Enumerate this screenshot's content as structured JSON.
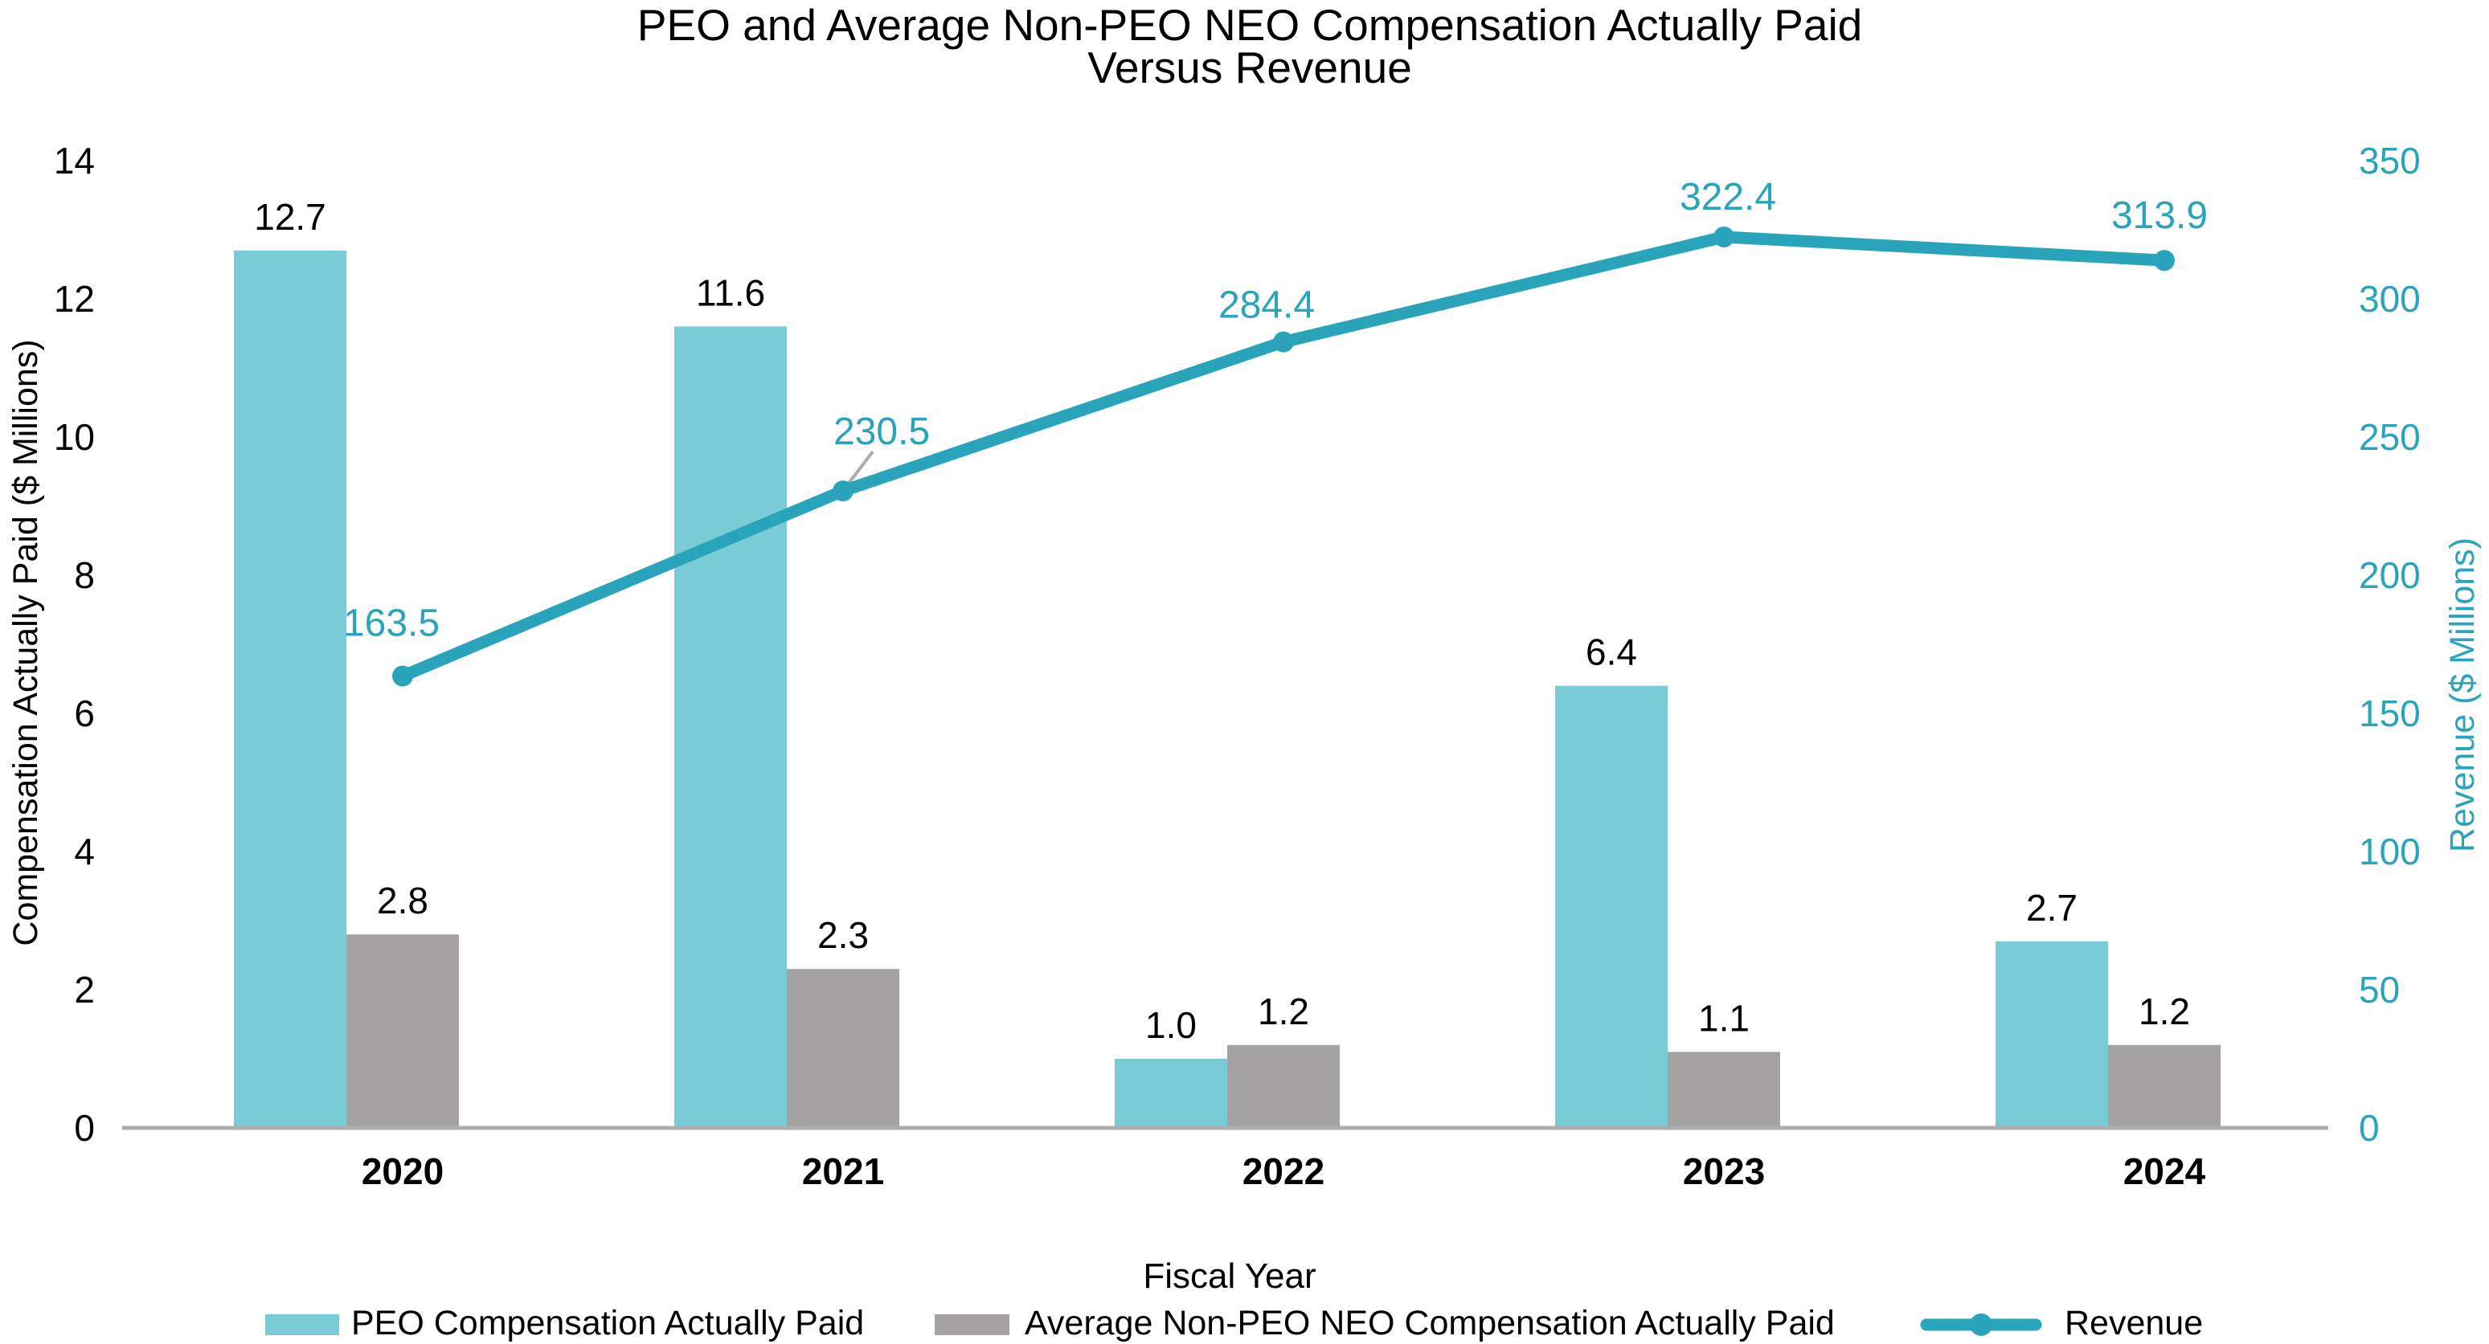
{
  "chart_data": {
    "type": "combo-bar-line",
    "title_lines": [
      "PEO and Average Non-PEO NEO Compensation Actually Paid",
      "Versus Revenue"
    ],
    "xlabel": "Fiscal Year",
    "ylabel_left": "Compensation Actually Paid ($ Millions)",
    "ylabel_right": "Revenue ($ Millions)",
    "categories": [
      "2020",
      "2021",
      "2022",
      "2023",
      "2024"
    ],
    "series": [
      {
        "name": "PEO Compensation Actually Paid",
        "type": "bar",
        "axis": "left",
        "color": "#79CBD5",
        "values": [
          12.7,
          11.6,
          1.0,
          6.4,
          2.7
        ]
      },
      {
        "name": "Average Non-PEO NEO Compensation Actually Paid",
        "type": "bar",
        "axis": "left",
        "color": "#A5A3A1",
        "values": [
          2.8,
          2.3,
          1.2,
          1.1,
          1.2
        ]
      },
      {
        "name": "Revenue",
        "type": "line",
        "axis": "right",
        "color": "#29A4BB",
        "values": [
          163.5,
          230.5,
          284.4,
          322.4,
          313.9
        ]
      }
    ],
    "axes": {
      "left": {
        "min": 0,
        "max": 14,
        "ticks": [
          0,
          2,
          4,
          6,
          8,
          10,
          12,
          14
        ],
        "label_color": "#000000"
      },
      "right": {
        "min": 0,
        "max": 350,
        "ticks": [
          0,
          50,
          100,
          150,
          200,
          250,
          300,
          350
        ],
        "label_color": "#29A4BB"
      }
    },
    "grid": false,
    "legend_position": "bottom",
    "annotation_leader_color": "#ABABAB",
    "axis_line_color": "#ADADAD",
    "text_color": "#000000"
  }
}
